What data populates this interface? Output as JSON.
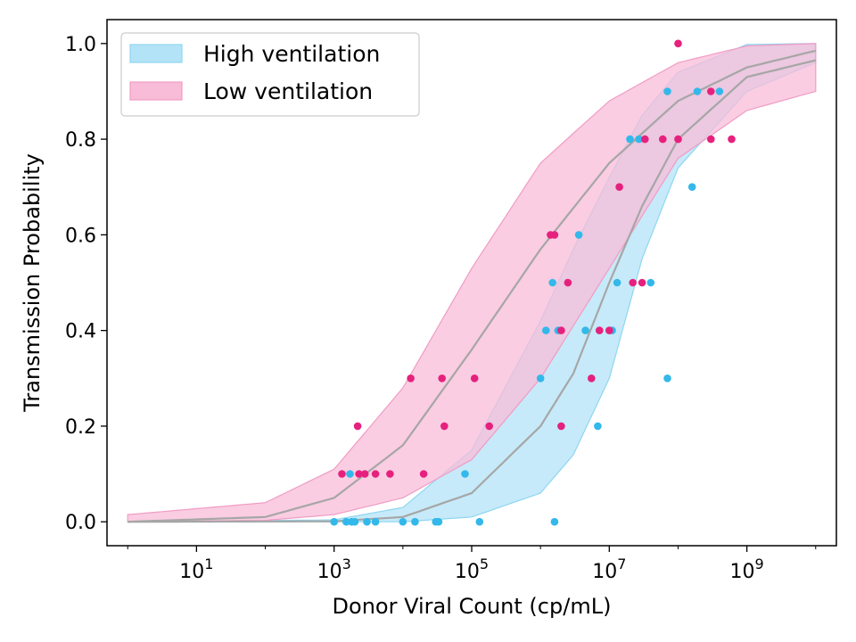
{
  "chart_data": {
    "type": "scatter",
    "xlabel": "Donor Viral Count (cp/mL)",
    "ylabel": "Transmission Probability",
    "xscale": "log",
    "xlim": [
      0.5,
      20000000000
    ],
    "ylim": [
      -0.05,
      1.05
    ],
    "x_ticks": [
      10,
      1000,
      100000,
      10000000,
      1000000000
    ],
    "x_tick_labels": [
      {
        "base": "10",
        "exp": "1"
      },
      {
        "base": "10",
        "exp": "3"
      },
      {
        "base": "10",
        "exp": "5"
      },
      {
        "base": "10",
        "exp": "7"
      },
      {
        "base": "10",
        "exp": "9"
      }
    ],
    "y_ticks": [
      0.0,
      0.2,
      0.4,
      0.6,
      0.8,
      1.0
    ],
    "y_tick_labels": [
      "0.0",
      "0.2",
      "0.4",
      "0.6",
      "0.8",
      "1.0"
    ],
    "grid": false,
    "legend_position": "top-left",
    "curve_color": "#a6a6a6",
    "series": [
      {
        "name": "High ventilation",
        "fill_color": "#b3e3f7",
        "edge_color": "#8fd6f2",
        "point_color": "#33b8ea",
        "fit_curve": {
          "x": [
            1,
            1000,
            10000,
            100000,
            1000000,
            3000000,
            10000000,
            30000000,
            100000000,
            1000000000,
            10000000000
          ],
          "y": [
            0.0,
            0.001,
            0.01,
            0.06,
            0.2,
            0.31,
            0.5,
            0.66,
            0.8,
            0.93,
            0.965
          ]
        },
        "band": {
          "x": [
            1,
            1000,
            10000,
            100000,
            1000000,
            3000000,
            10000000,
            30000000,
            100000000,
            1000000000,
            10000000000
          ],
          "lower": [
            0.0,
            0.0,
            0.0,
            0.01,
            0.06,
            0.14,
            0.3,
            0.55,
            0.74,
            0.9,
            0.96
          ],
          "upper": [
            0.0,
            0.004,
            0.03,
            0.15,
            0.42,
            0.57,
            0.72,
            0.85,
            0.94,
            0.998,
            1.0
          ]
        },
        "points": [
          {
            "x": 1000,
            "y": 0.0
          },
          {
            "x": 1500,
            "y": 0.0
          },
          {
            "x": 1800,
            "y": 0.0
          },
          {
            "x": 2000,
            "y": 0.0
          },
          {
            "x": 3000,
            "y": 0.0
          },
          {
            "x": 4000,
            "y": 0.0
          },
          {
            "x": 10000,
            "y": 0.0
          },
          {
            "x": 15000,
            "y": 0.0
          },
          {
            "x": 30000,
            "y": 0.0
          },
          {
            "x": 33000,
            "y": 0.0
          },
          {
            "x": 130000,
            "y": 0.0
          },
          {
            "x": 1600000,
            "y": 0.0
          },
          {
            "x": 1700,
            "y": 0.1
          },
          {
            "x": 80000,
            "y": 0.1
          },
          {
            "x": 6800000,
            "y": 0.2
          },
          {
            "x": 1000000,
            "y": 0.3
          },
          {
            "x": 70000000,
            "y": 0.3
          },
          {
            "x": 1200000,
            "y": 0.4
          },
          {
            "x": 1800000,
            "y": 0.4
          },
          {
            "x": 4500000,
            "y": 0.4
          },
          {
            "x": 11000000,
            "y": 0.4
          },
          {
            "x": 1500000,
            "y": 0.5
          },
          {
            "x": 13000000,
            "y": 0.5
          },
          {
            "x": 40000000,
            "y": 0.5
          },
          {
            "x": 3600000,
            "y": 0.6
          },
          {
            "x": 160000000,
            "y": 0.7
          },
          {
            "x": 20000000,
            "y": 0.8
          },
          {
            "x": 27000000,
            "y": 0.8
          },
          {
            "x": 70000000,
            "y": 0.9
          },
          {
            "x": 190000000,
            "y": 0.9
          },
          {
            "x": 400000000,
            "y": 0.9
          }
        ]
      },
      {
        "name": "Low ventilation",
        "fill_color": "#f8bcd8",
        "edge_color": "#f09cc4",
        "point_color": "#e6217d",
        "fit_curve": {
          "x": [
            1,
            100,
            1000,
            10000,
            100000,
            1000000,
            10000000,
            100000000,
            1000000000,
            10000000000
          ],
          "y": [
            0.0,
            0.01,
            0.05,
            0.16,
            0.36,
            0.57,
            0.75,
            0.88,
            0.95,
            0.985
          ]
        },
        "band": {
          "x": [
            1,
            100,
            1000,
            10000,
            100000,
            1000000,
            10000000,
            100000000,
            1000000000,
            10000000000
          ],
          "lower": [
            0.0,
            0.003,
            0.015,
            0.05,
            0.13,
            0.3,
            0.53,
            0.76,
            0.86,
            0.9
          ],
          "upper": [
            0.015,
            0.04,
            0.11,
            0.28,
            0.53,
            0.75,
            0.88,
            0.96,
            0.995,
            1.0
          ]
        },
        "points": [
          {
            "x": 1300,
            "y": 0.1
          },
          {
            "x": 2300,
            "y": 0.1
          },
          {
            "x": 2800,
            "y": 0.1
          },
          {
            "x": 4000,
            "y": 0.1
          },
          {
            "x": 6500,
            "y": 0.1
          },
          {
            "x": 20000,
            "y": 0.1
          },
          {
            "x": 2200,
            "y": 0.2
          },
          {
            "x": 40000,
            "y": 0.2
          },
          {
            "x": 180000,
            "y": 0.2
          },
          {
            "x": 2000000,
            "y": 0.2
          },
          {
            "x": 13000,
            "y": 0.3
          },
          {
            "x": 37000,
            "y": 0.3
          },
          {
            "x": 110000,
            "y": 0.3
          },
          {
            "x": 5500000,
            "y": 0.3
          },
          {
            "x": 2000000,
            "y": 0.4
          },
          {
            "x": 7200000,
            "y": 0.4
          },
          {
            "x": 10000000,
            "y": 0.4
          },
          {
            "x": 2500000,
            "y": 0.5
          },
          {
            "x": 22000000,
            "y": 0.5
          },
          {
            "x": 30000000,
            "y": 0.5
          },
          {
            "x": 1400000,
            "y": 0.6
          },
          {
            "x": 1600000,
            "y": 0.6
          },
          {
            "x": 14000000,
            "y": 0.7
          },
          {
            "x": 33000000,
            "y": 0.8
          },
          {
            "x": 60000000,
            "y": 0.8
          },
          {
            "x": 100000000,
            "y": 0.8
          },
          {
            "x": 300000000,
            "y": 0.8
          },
          {
            "x": 600000000,
            "y": 0.8
          },
          {
            "x": 300000000,
            "y": 0.9
          },
          {
            "x": 100000000,
            "y": 1.0
          }
        ]
      }
    ]
  }
}
